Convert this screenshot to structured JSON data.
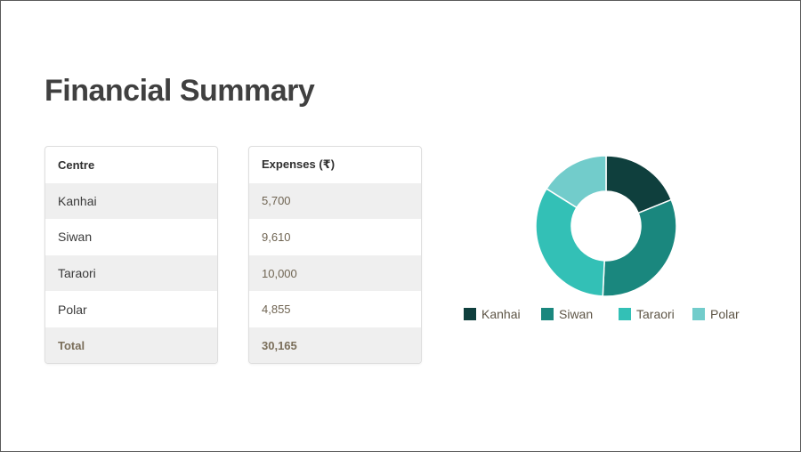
{
  "slide": {
    "title": "Financial Summary"
  },
  "table": {
    "centre_header": "Centre",
    "expenses_header": "Expenses (₹)",
    "rows": [
      {
        "centre": "Kanhai",
        "expenses": "5,700"
      },
      {
        "centre": "Siwan",
        "expenses": "9,610"
      },
      {
        "centre": "Taraori",
        "expenses": "10,000"
      },
      {
        "centre": "Polar",
        "expenses": "4,855"
      }
    ],
    "total_label": "Total",
    "total_value": "30,165"
  },
  "chart_data": {
    "type": "pie",
    "variant": "donut",
    "categories": [
      "Kanhai",
      "Siwan",
      "Taraori",
      "Polar"
    ],
    "values": [
      5700,
      9610,
      10000,
      4855
    ],
    "colors": [
      "#0f3f3d",
      "#1a877e",
      "#33c0b6",
      "#72cccb"
    ],
    "legend": "bottom"
  }
}
